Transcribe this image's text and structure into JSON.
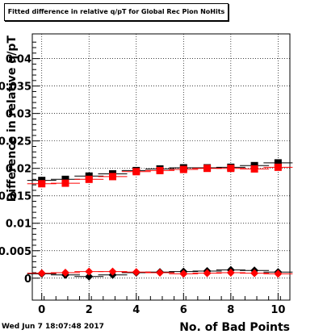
{
  "title": "Fitted difference in relative q/pT for Global Rec Pion NoHits",
  "footer_date": "Wed Jun  7 18:07:48 2017",
  "chart_data": {
    "type": "scatter",
    "title": "Fitted difference in relative q/pT for Global Rec Pion NoHits",
    "xlabel": "No. of Bad Points",
    "ylabel": "Difference in relative q/pT",
    "xlim": [
      -0.4,
      10.5
    ],
    "ylim": [
      -0.004,
      0.0445
    ],
    "x_ticks": [
      0,
      2,
      4,
      6,
      8,
      10
    ],
    "x_tick_labels": [
      "0",
      "2",
      "4",
      "6",
      "8",
      "10"
    ],
    "y_ticks": [
      0,
      0.005,
      0.01,
      0.015,
      0.02,
      0.025,
      0.03,
      0.035,
      0.04
    ],
    "y_tick_labels": [
      "0",
      "0.005",
      "0.01",
      "0.015",
      "0.02",
      "0.025",
      "0.03",
      "0.035",
      "0.04"
    ],
    "grid": true,
    "legend": "none",
    "series": [
      {
        "color": "#000000",
        "marker": "square",
        "x": [
          0,
          1,
          2,
          3,
          4,
          5,
          6,
          7,
          8,
          9,
          10
        ],
        "y": [
          0.0178,
          0.018,
          0.0186,
          0.019,
          0.0196,
          0.0199,
          0.0201,
          0.0201,
          0.0202,
          0.0205,
          0.021
        ]
      },
      {
        "color": "#ff0000",
        "marker": "square",
        "x": [
          0,
          1,
          2,
          3,
          4,
          5,
          6,
          7,
          8,
          9,
          10
        ],
        "y": [
          0.0172,
          0.0173,
          0.018,
          0.0185,
          0.0194,
          0.0196,
          0.0198,
          0.02,
          0.02,
          0.0199,
          0.0202
        ]
      },
      {
        "color": "#000000",
        "marker": "diamond",
        "x": [
          0,
          1,
          2,
          3,
          4,
          5,
          6,
          7,
          8,
          9,
          10
        ],
        "y": [
          0.0008,
          0.0006,
          0.0003,
          0.0006,
          0.001,
          0.0011,
          0.0012,
          0.0013,
          0.0015,
          0.0014,
          0.0011
        ]
      },
      {
        "color": "#ff0000",
        "marker": "diamond",
        "x": [
          0,
          1,
          2,
          3,
          4,
          5,
          6,
          7,
          8,
          9,
          10
        ],
        "y": [
          0.0009,
          0.001,
          0.0012,
          0.0012,
          0.0011,
          0.001,
          0.0008,
          0.0009,
          0.001,
          0.0009,
          0.0008
        ]
      }
    ]
  }
}
